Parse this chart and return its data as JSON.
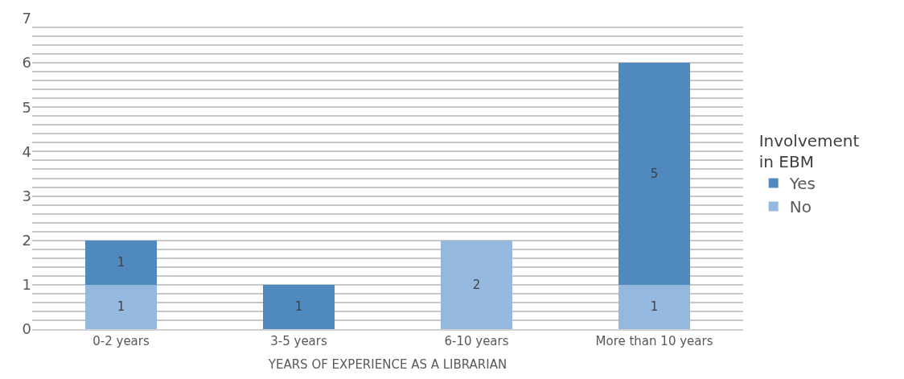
{
  "chart_data": {
    "type": "bar",
    "stacked": true,
    "categories": [
      "0-2 years",
      "3-5 years",
      "6-10 years",
      "More than 10 years"
    ],
    "xlabel": "YEARS OF EXPERIENCE AS A LIBRARIAN",
    "legend_title": "Involvement\nin EBM",
    "series": [
      {
        "name": "No",
        "color": "#95b8df",
        "values": [
          1,
          null,
          2,
          1
        ]
      },
      {
        "name": "Yes",
        "color": "#4f89bd",
        "values": [
          1,
          1,
          null,
          5
        ]
      }
    ],
    "ylim": [
      0,
      7
    ],
    "yticks": [
      0,
      {
        "value": 0.2,
        "label": null
      },
      {
        "value": 0.4,
        "label": null
      },
      {
        "value": 0.6,
        "label": null
      },
      {
        "value": 0.8,
        "label": null
      },
      1,
      {
        "value": 1.2,
        "label": null
      },
      {
        "value": 1.4,
        "label": null
      },
      {
        "value": 1.6,
        "label": null
      },
      {
        "value": 1.8,
        "label": null
      },
      2,
      {
        "value": 2.2,
        "label": null
      },
      {
        "value": 2.4,
        "label": null
      },
      {
        "value": 2.6,
        "label": null
      },
      {
        "value": 2.8,
        "label": null
      },
      3,
      {
        "value": 3.2,
        "label": null
      },
      {
        "value": 3.4,
        "label": null
      },
      {
        "value": 3.6,
        "label": null
      },
      {
        "value": 3.8,
        "label": null
      },
      4,
      {
        "value": 4.2,
        "label": null
      },
      {
        "value": 4.4,
        "label": null
      },
      {
        "value": 4.6,
        "label": null
      },
      {
        "value": 4.8,
        "label": null
      },
      5,
      {
        "value": 5.2,
        "label": null
      },
      {
        "value": 5.4,
        "label": null
      },
      {
        "value": 5.6,
        "label": null
      },
      {
        "value": 5.8,
        "label": null
      },
      6,
      {
        "value": 6.2,
        "label": null
      },
      {
        "value": 6.4,
        "label": null
      },
      {
        "value": 6.6,
        "label": null
      },
      {
        "value": 6.8,
        "label": null
      },
      7
    ],
    "grid": "y",
    "legend": "right",
    "data_labels": true
  }
}
